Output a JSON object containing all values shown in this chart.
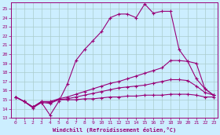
{
  "xlabel": "Windchill (Refroidissement éolien,°C)",
  "background_color": "#cceeff",
  "grid_color": "#aacccc",
  "line_color": "#990077",
  "xlim": [
    -0.5,
    23.5
  ],
  "ylim": [
    13,
    25.7
  ],
  "xticks": [
    0,
    1,
    2,
    3,
    4,
    5,
    6,
    7,
    8,
    9,
    10,
    11,
    12,
    13,
    14,
    15,
    16,
    17,
    18,
    19,
    20,
    21,
    22,
    23
  ],
  "yticks": [
    13,
    14,
    15,
    16,
    17,
    18,
    19,
    20,
    21,
    22,
    23,
    24,
    25
  ],
  "lines": [
    {
      "x": [
        0,
        1,
        2,
        3,
        4,
        5,
        6,
        7,
        8,
        9,
        10,
        11,
        12,
        13,
        14,
        15,
        16,
        17,
        18,
        19,
        20,
        21,
        22,
        23
      ],
      "y": [
        15.3,
        14.8,
        14.2,
        14.7,
        13.3,
        14.8,
        16.7,
        19.3,
        20.5,
        21.5,
        22.5,
        24.0,
        24.4,
        24.4,
        24.0,
        25.5,
        24.5,
        24.7,
        24.7,
        20.5,
        19.2,
        17.3,
        16.2,
        15.5
      ]
    },
    {
      "x": [
        0,
        1,
        2,
        3,
        4,
        5,
        6,
        7,
        8,
        9,
        10,
        11,
        12,
        13,
        14,
        15,
        16,
        17,
        18,
        19,
        20,
        21,
        22,
        23
      ],
      "y": [
        15.3,
        14.8,
        14.2,
        14.8,
        14.8,
        15.1,
        15.3,
        15.6,
        15.9,
        16.2,
        16.5,
        16.8,
        17.0,
        17.3,
        17.6,
        17.9,
        18.2,
        18.5,
        19.3,
        19.3,
        19.2,
        19.0,
        16.2,
        15.5
      ]
    },
    {
      "x": [
        0,
        1,
        2,
        3,
        4,
        5,
        6,
        7,
        8,
        9,
        10,
        11,
        12,
        13,
        14,
        15,
        16,
        17,
        18,
        19,
        20,
        21,
        22,
        23
      ],
      "y": [
        15.3,
        14.8,
        14.2,
        14.8,
        14.7,
        15.0,
        15.1,
        15.3,
        15.5,
        15.7,
        15.9,
        16.1,
        16.3,
        16.4,
        16.5,
        16.6,
        16.8,
        17.0,
        17.2,
        17.2,
        17.1,
        16.5,
        15.8,
        15.5
      ]
    },
    {
      "x": [
        0,
        1,
        2,
        3,
        4,
        5,
        6,
        7,
        8,
        9,
        10,
        11,
        12,
        13,
        14,
        15,
        16,
        17,
        18,
        19,
        20,
        21,
        22,
        23
      ],
      "y": [
        15.3,
        14.8,
        14.1,
        14.7,
        14.6,
        15.0,
        15.0,
        15.0,
        15.1,
        15.1,
        15.2,
        15.3,
        15.3,
        15.4,
        15.4,
        15.5,
        15.5,
        15.5,
        15.6,
        15.6,
        15.6,
        15.5,
        15.3,
        15.3
      ]
    }
  ]
}
